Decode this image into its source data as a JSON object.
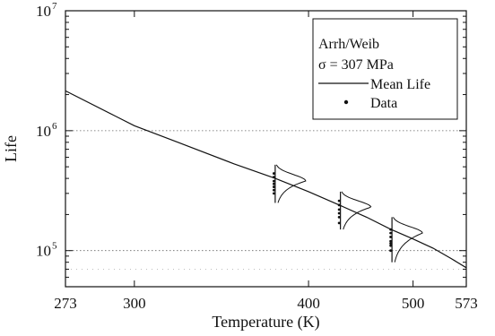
{
  "chart_data": {
    "type": "line",
    "xlabel": "Temperature (K)",
    "ylabel": "Life",
    "xlim": [
      273,
      573
    ],
    "ylim": [
      50000,
      10000000
    ],
    "x_scale": "reciprocal",
    "y_scale": "log",
    "x_ticks": [
      273,
      300,
      400,
      500,
      573
    ],
    "y_ticks": [
      {
        "value": 100000,
        "base": "10",
        "exp": "5"
      },
      {
        "value": 1000000,
        "base": "10",
        "exp": "6"
      },
      {
        "value": 10000000,
        "base": "10",
        "exp": "7"
      }
    ],
    "grid": "horizontal dotted",
    "legend": {
      "position": "top-right",
      "title_line1": "Arrh/Weib",
      "title_line2": "σ  =  307 MPa",
      "entries": [
        {
          "label": "Mean Life",
          "marker": "line"
        },
        {
          "label": "Data",
          "marker": "dot"
        }
      ]
    },
    "series": [
      {
        "name": "Mean Life",
        "x": [
          273,
          300,
          320,
          350,
          376,
          400,
          425,
          450,
          475,
          500,
          525,
          550,
          573
        ],
        "y": [
          2150000,
          1100000,
          800000,
          530000,
          400000,
          310000,
          240000,
          190000,
          150000,
          125000,
          105000,
          86000,
          72000
        ]
      },
      {
        "name": "Data",
        "x": [
          376,
          376,
          376,
          376,
          376,
          376,
          376,
          426,
          426,
          426,
          426,
          426,
          426,
          476,
          476,
          476,
          476,
          476,
          476,
          476
        ],
        "y": [
          300000,
          320000,
          340000,
          360000,
          380000,
          410000,
          440000,
          170000,
          190000,
          205000,
          220000,
          240000,
          260000,
          100000,
          110000,
          115000,
          120000,
          130000,
          140000,
          150000
        ]
      }
    ],
    "distributions": [
      {
        "temperature": 376,
        "mode": 380000,
        "ymin": 250000,
        "ymax": 520000
      },
      {
        "temperature": 426,
        "mode": 230000,
        "ymin": 150000,
        "ymax": 310000
      },
      {
        "temperature": 476,
        "mode": 140000,
        "ymin": 80000,
        "ymax": 190000
      }
    ]
  }
}
